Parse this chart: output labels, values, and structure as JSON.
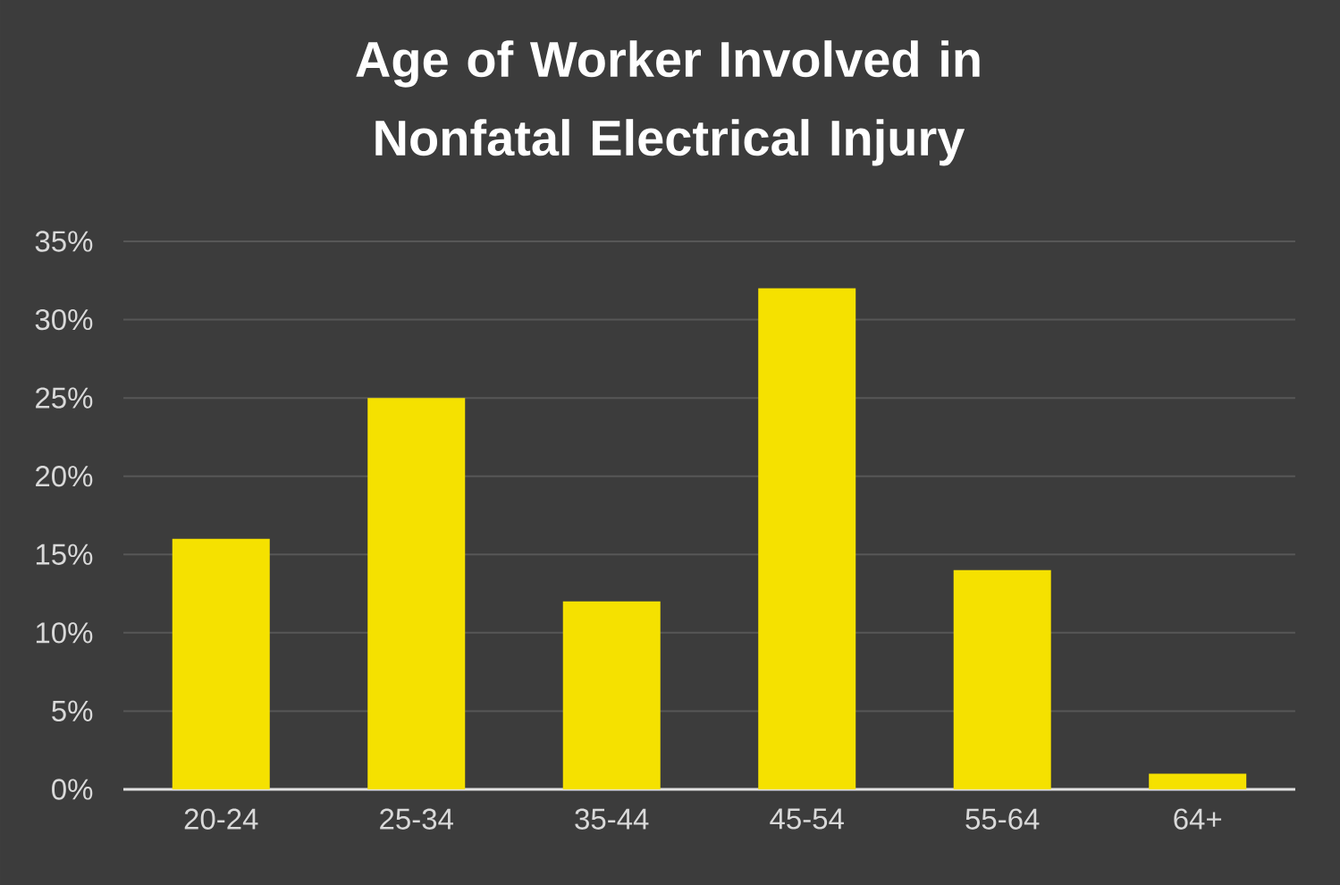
{
  "chart_data": {
    "type": "bar",
    "title": "Age of Worker Involved in Nonfatal Electrical Injury",
    "categories": [
      "20-24",
      "25-34",
      "35-44",
      "45-54",
      "55-64",
      "64+"
    ],
    "values": [
      16,
      25,
      12,
      32,
      14,
      1
    ],
    "color": "#f5e100",
    "ylim": [
      0,
      35
    ],
    "yticks": [
      {
        "value": 0,
        "label": "0%"
      },
      {
        "value": 5,
        "label": "5%"
      },
      {
        "value": 10,
        "label": "10%"
      },
      {
        "value": 15,
        "label": "15%"
      },
      {
        "value": 20,
        "label": "20%"
      },
      {
        "value": 25,
        "label": "25%"
      },
      {
        "value": 30,
        "label": "30%"
      },
      {
        "value": 35,
        "label": "35%"
      }
    ],
    "grid": "y"
  }
}
